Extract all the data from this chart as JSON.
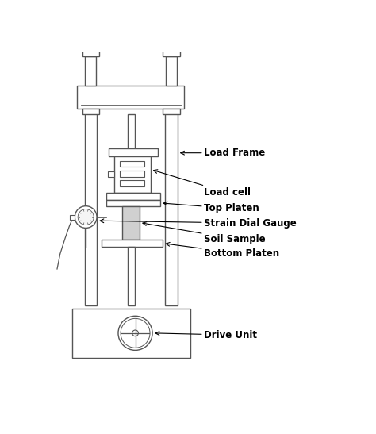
{
  "bg_color": "#ffffff",
  "line_color": "#555555",
  "fill_light": "#d0d0d0",
  "fill_white": "#ffffff",
  "text_color": "#000000",
  "labels": {
    "load_frame": "Load Frame",
    "load_cell": "Load cell",
    "top_platen": "Top Platen",
    "strain_gauge": "Strain Dial Gauge",
    "soil_sample": "Soil Sample",
    "bottom_platen": "Bottom Platen",
    "drive_unit": "Drive Unit"
  },
  "label_fontsize": 8.5,
  "label_fontweight": "bold",
  "figsize": [
    4.74,
    5.47
  ],
  "dpi": 100
}
